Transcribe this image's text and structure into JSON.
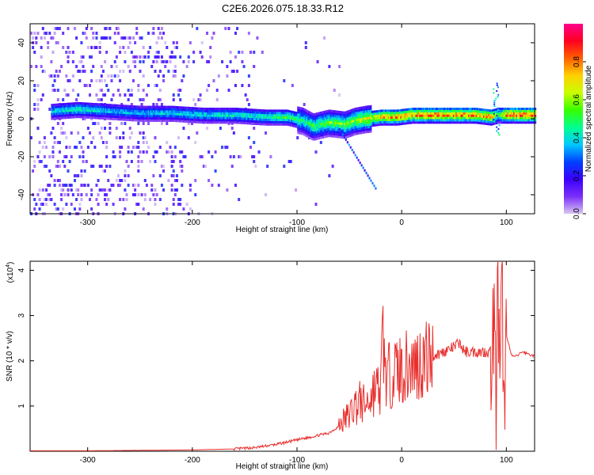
{
  "title": "C2E6.2026.075.18.33.R12",
  "chart_data": [
    {
      "type": "heatmap",
      "name": "spectrogram",
      "xlabel": "Height of straight line (km)",
      "ylabel": "Frequency (Hz)",
      "xlim": [
        -355,
        127
      ],
      "ylim": [
        -50,
        50
      ],
      "xticks": [
        -300,
        -200,
        -100,
        0,
        100
      ],
      "xtick_labels": [
        "-300",
        "-200",
        "-100",
        "0",
        "100"
      ],
      "yticks": [
        -40,
        -20,
        0,
        20,
        40
      ],
      "ytick_labels": [
        "-40",
        "-20",
        "0",
        "20",
        "40"
      ],
      "colorbar": {
        "label": "Normalized spectral amplitude",
        "range": [
          0,
          1
        ],
        "ticks": [
          0.0,
          0.2,
          0.4,
          0.6,
          0.8
        ],
        "tick_labels": [
          "0.0",
          "0.2",
          "0.4",
          "0.6",
          "0.8"
        ],
        "colormap": [
          "#d8c6f2",
          "#7b2ff7",
          "#3a00ff",
          "#0040ff",
          "#00c8ff",
          "#00ff90",
          "#38ff00",
          "#c8ff00",
          "#ffd000",
          "#ff6000",
          "#ff0020",
          "#ff008c"
        ]
      },
      "ridge": {
        "description_free": true,
        "x": [
          -335,
          -310,
          -280,
          -250,
          -220,
          -190,
          -160,
          -130,
          -110,
          -95,
          -85,
          -70,
          -55,
          -45,
          -35,
          -20,
          -5,
          10,
          30,
          50,
          70,
          85,
          92,
          100,
          127
        ],
        "y": [
          4,
          5,
          4,
          3,
          3,
          2,
          2,
          1,
          1,
          -1,
          -4,
          -2,
          -3,
          -1,
          0,
          1,
          1,
          2,
          2,
          2,
          2,
          1,
          2,
          2,
          2
        ],
        "amplitude": [
          0.45,
          0.5,
          0.42,
          0.4,
          0.45,
          0.45,
          0.48,
          0.5,
          0.6,
          0.5,
          0.55,
          0.6,
          0.62,
          0.65,
          0.7,
          0.85,
          0.88,
          0.88,
          0.9,
          0.9,
          0.9,
          0.9,
          0.55,
          0.95,
          0.95
        ]
      }
    },
    {
      "type": "line",
      "name": "snr",
      "xlabel": "Height of straight line (km)",
      "ylabel": "SNR (10 * v/v)",
      "y_multiplier_label": "(x10",
      "y_multiplier_exp": "4",
      "y_multiplier_close": ")",
      "xlim": [
        -355,
        127
      ],
      "ylim": [
        0,
        4.2
      ],
      "xticks": [
        -300,
        -200,
        -100,
        0,
        100
      ],
      "xtick_labels": [
        "-300",
        "-200",
        "-100",
        "0",
        "100"
      ],
      "yticks": [
        1,
        2,
        3,
        4
      ],
      "ytick_labels": [
        "1",
        "2",
        "3",
        "4"
      ],
      "line_color": "#e8302e",
      "x": [
        -355,
        -300,
        -250,
        -200,
        -180,
        -160,
        -140,
        -120,
        -110,
        -100,
        -90,
        -80,
        -70,
        -60,
        -55,
        -50,
        -45,
        -40,
        -35,
        -30,
        -25,
        -20,
        -18,
        -15,
        -10,
        -5,
        0,
        10,
        20,
        30,
        40,
        50,
        55,
        60,
        70,
        80,
        85,
        88,
        90,
        92,
        94,
        96,
        98,
        100,
        105,
        110,
        115,
        127
      ],
      "y": [
        0.01,
        0.01,
        0.02,
        0.03,
        0.04,
        0.05,
        0.08,
        0.15,
        0.2,
        0.25,
        0.3,
        0.35,
        0.4,
        0.55,
        0.7,
        0.8,
        1.0,
        1.1,
        1.0,
        1.2,
        1.4,
        1.3,
        2.6,
        1.6,
        1.7,
        1.8,
        1.8,
        1.9,
        2.0,
        2.1,
        2.2,
        2.3,
        2.4,
        2.2,
        2.2,
        2.2,
        2.2,
        3.0,
        1.0,
        3.8,
        0.5,
        4.2,
        0.4,
        2.6,
        2.1,
        2.1,
        2.2,
        2.1
      ]
    }
  ]
}
